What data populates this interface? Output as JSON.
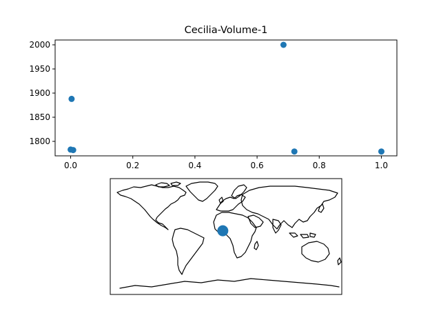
{
  "chart_data": [
    {
      "type": "scatter",
      "title": "Cecilia-Volume-1",
      "xlabel": "",
      "ylabel": "",
      "xlim": [
        -0.05,
        1.05
      ],
      "ylim": [
        1770,
        2010
      ],
      "xticks": [
        0.0,
        0.2,
        0.4,
        0.6,
        0.8,
        1.0
      ],
      "xtick_labels": [
        "0.0",
        "0.2",
        "0.4",
        "0.6",
        "0.8",
        "1.0"
      ],
      "yticks": [
        1800,
        1850,
        1900,
        1950,
        2000
      ],
      "ytick_labels": [
        "1800",
        "1850",
        "1900",
        "1950",
        "2000"
      ],
      "grid": false,
      "color": "#1f77b4",
      "points": [
        {
          "x": 0.003,
          "y": 1888
        },
        {
          "x": 0.0,
          "y": 1783
        },
        {
          "x": 0.008,
          "y": 1782
        },
        {
          "x": 0.685,
          "y": 2000
        },
        {
          "x": 0.72,
          "y": 1779
        },
        {
          "x": 1.0,
          "y": 1779
        }
      ]
    },
    {
      "type": "scatter",
      "title": "",
      "map": "world coastlines",
      "color": "#1f77b4",
      "points": [
        {
          "lon": -5,
          "lat": 9
        }
      ]
    }
  ]
}
